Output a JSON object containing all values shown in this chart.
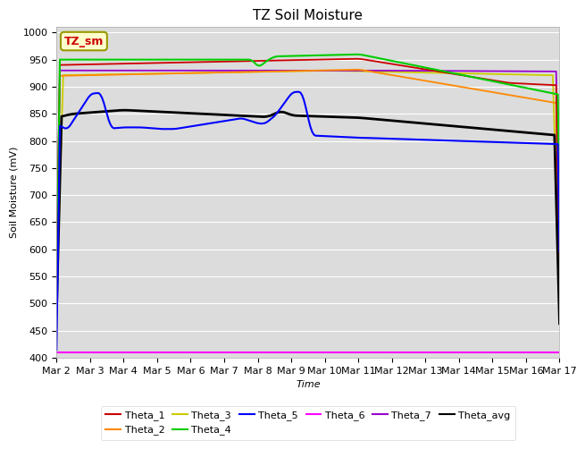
{
  "title": "TZ Soil Moisture",
  "ylabel": "Soil Moisture (mV)",
  "xlabel": "Time",
  "box_label": "TZ_sm",
  "ylim": [
    400,
    1010
  ],
  "yticks": [
    400,
    450,
    500,
    550,
    600,
    650,
    700,
    750,
    800,
    850,
    900,
    950,
    1000
  ],
  "x_labels": [
    "Mar 2",
    "Mar 3",
    "Mar 4",
    "Mar 5",
    "Mar 6",
    "Mar 7",
    "Mar 8",
    "Mar 9",
    "Mar 10",
    "Mar 11",
    "Mar 12",
    "Mar 13",
    "Mar 14",
    "Mar 15",
    "Mar 16",
    "Mar 17"
  ],
  "colors": {
    "Theta_1": "#cc0000",
    "Theta_2": "#ff8800",
    "Theta_3": "#cccc00",
    "Theta_4": "#00cc00",
    "Theta_5": "#0000ff",
    "Theta_6": "#ff00ff",
    "Theta_7": "#9900cc",
    "Theta_avg": "#000000"
  },
  "plot_bg_color": "#dcdcdc",
  "fig_bg_color": "#ffffff",
  "grid_color": "#ffffff",
  "title_fontsize": 11,
  "axis_fontsize": 8,
  "tick_fontsize": 8,
  "legend_fontsize": 8
}
